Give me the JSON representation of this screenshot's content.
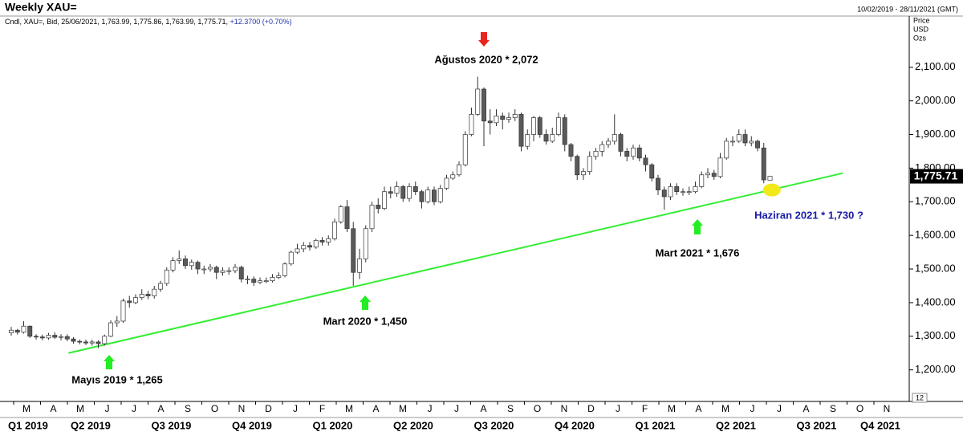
{
  "chart_data": {
    "type": "candlestick",
    "title": "Weekly XAU=",
    "date_range": "10/02/2019 - 28/11/2021 (GMT)",
    "info": "Cndl, XAU=, Bid, 25/06/2021, 1,763.99, 1,775.86, 1,763.99, 1,775.71,",
    "change": "+12.3700",
    "change_pct": "(+0.70%)",
    "units": [
      "Price",
      "USD",
      "Ozs"
    ],
    "corner_label": "12",
    "last_price_label": "1,775.71",
    "up_color": "#ffffff",
    "down_color": "#5a5a5a",
    "months": [
      "M",
      "A",
      "M",
      "J",
      "J",
      "A",
      "S",
      "O",
      "N",
      "D",
      "J",
      "F",
      "M",
      "A",
      "M",
      "J",
      "J",
      "A",
      "S",
      "O",
      "N",
      "D",
      "J",
      "F",
      "M",
      "A",
      "M",
      "J",
      "J",
      "A",
      "S",
      "O",
      "N"
    ],
    "quarters": [
      "Q1 2019",
      "Q2 2019",
      "Q3 2019",
      "Q4 2019",
      "Q1 2020",
      "Q2 2020",
      "Q3 2020",
      "Q4 2020",
      "Q1 2021",
      "Q2 2021",
      "Q3 2021",
      "Q4 2021"
    ],
    "ylim": [
      1130,
      2257
    ],
    "yticks": [
      {
        "value": 1200,
        "label": "1,200.00"
      },
      {
        "value": 1300,
        "label": "1,300.00"
      },
      {
        "value": 1400,
        "label": "1,400.00"
      },
      {
        "value": 1500,
        "label": "1,500.00"
      },
      {
        "value": 1600,
        "label": "1,600.00"
      },
      {
        "value": 1700,
        "label": "1,700.00"
      },
      {
        "value": 1800,
        "label": "1,800.00"
      },
      {
        "value": 1900,
        "label": "1,900.00"
      },
      {
        "value": 2000,
        "label": "2,000.00"
      },
      {
        "value": 2100,
        "label": "2,100.00"
      }
    ],
    "open": [
      1310,
      1318,
      1312,
      1330,
      1300,
      1298,
      1295,
      1303,
      1297,
      1299,
      1292,
      1285,
      1283,
      1280,
      1283,
      1278,
      1300,
      1340,
      1345,
      1405,
      1400,
      1415,
      1425,
      1420,
      1440,
      1457,
      1497,
      1525,
      1530,
      1510,
      1520,
      1500,
      1500,
      1505,
      1490,
      1495,
      1495,
      1505,
      1470,
      1470,
      1460,
      1465,
      1465,
      1475,
      1480,
      1515,
      1550,
      1560,
      1570,
      1565,
      1585,
      1580,
      1590,
      1640,
      1685,
      1620,
      1490,
      1530,
      1620,
      1690,
      1680,
      1730,
      1725,
      1745,
      1710,
      1745,
      1730,
      1700,
      1735,
      1700,
      1740,
      1770,
      1780,
      1810,
      1900,
      1960,
      2035,
      1940,
      1935,
      1955,
      1945,
      1950,
      1960,
      1865,
      1900,
      1950,
      1900,
      1880,
      1900,
      1950,
      1870,
      1835,
      1780,
      1790,
      1835,
      1850,
      1870,
      1880,
      1900,
      1850,
      1835,
      1860,
      1830,
      1810,
      1770,
      1735,
      1715,
      1745,
      1730,
      1730,
      1730,
      1745,
      1780,
      1785,
      1775,
      1830,
      1880,
      1880,
      1900,
      1875,
      1880,
      1860,
      1763.99
    ],
    "high": [
      1328,
      1322,
      1345,
      1332,
      1306,
      1305,
      1310,
      1312,
      1306,
      1306,
      1297,
      1290,
      1290,
      1290,
      1288,
      1305,
      1348,
      1360,
      1412,
      1420,
      1425,
      1440,
      1435,
      1450,
      1465,
      1505,
      1535,
      1555,
      1540,
      1528,
      1525,
      1510,
      1515,
      1510,
      1505,
      1505,
      1515,
      1510,
      1480,
      1478,
      1475,
      1475,
      1485,
      1490,
      1520,
      1555,
      1575,
      1580,
      1580,
      1590,
      1595,
      1600,
      1650,
      1690,
      1705,
      1640,
      1560,
      1630,
      1700,
      1710,
      1745,
      1745,
      1760,
      1750,
      1755,
      1760,
      1735,
      1745,
      1745,
      1750,
      1780,
      1790,
      1820,
      1910,
      1980,
      2072,
      2040,
      1975,
      1975,
      1965,
      1965,
      1975,
      1965,
      1915,
      1955,
      1955,
      1915,
      1920,
      1965,
      1960,
      1875,
      1840,
      1800,
      1850,
      1860,
      1880,
      1890,
      1960,
      1905,
      1860,
      1870,
      1870,
      1840,
      1815,
      1780,
      1745,
      1755,
      1755,
      1740,
      1745,
      1760,
      1790,
      1800,
      1795,
      1845,
      1890,
      1895,
      1915,
      1915,
      1895,
      1885,
      1875,
      1775.86
    ],
    "low": [
      1302,
      1305,
      1308,
      1295,
      1290,
      1288,
      1290,
      1292,
      1288,
      1285,
      1278,
      1276,
      1274,
      1272,
      1265,
      1272,
      1297,
      1328,
      1340,
      1385,
      1395,
      1408,
      1410,
      1412,
      1432,
      1450,
      1490,
      1515,
      1500,
      1498,
      1485,
      1485,
      1492,
      1470,
      1480,
      1483,
      1488,
      1460,
      1455,
      1450,
      1455,
      1458,
      1460,
      1470,
      1475,
      1510,
      1545,
      1550,
      1555,
      1560,
      1570,
      1570,
      1585,
      1635,
      1610,
      1450,
      1470,
      1520,
      1610,
      1665,
      1675,
      1710,
      1715,
      1700,
      1700,
      1720,
      1680,
      1695,
      1690,
      1695,
      1735,
      1765,
      1775,
      1805,
      1895,
      1955,
      1865,
      1900,
      1925,
      1915,
      1935,
      1940,
      1850,
      1855,
      1880,
      1890,
      1870,
      1875,
      1895,
      1850,
      1820,
      1765,
      1765,
      1780,
      1825,
      1835,
      1860,
      1870,
      1835,
      1820,
      1825,
      1820,
      1790,
      1760,
      1720,
      1676,
      1705,
      1720,
      1718,
      1720,
      1725,
      1740,
      1770,
      1765,
      1770,
      1825,
      1865,
      1875,
      1865,
      1865,
      1850,
      1755,
      1763.99
    ],
    "close": [
      1318,
      1312,
      1330,
      1300,
      1298,
      1295,
      1303,
      1297,
      1299,
      1292,
      1285,
      1283,
      1280,
      1283,
      1278,
      1300,
      1340,
      1345,
      1405,
      1400,
      1415,
      1425,
      1420,
      1440,
      1457,
      1497,
      1525,
      1530,
      1510,
      1520,
      1500,
      1500,
      1505,
      1490,
      1495,
      1495,
      1505,
      1470,
      1470,
      1460,
      1465,
      1465,
      1475,
      1480,
      1515,
      1550,
      1560,
      1570,
      1565,
      1585,
      1580,
      1590,
      1640,
      1685,
      1620,
      1490,
      1530,
      1620,
      1690,
      1680,
      1730,
      1725,
      1745,
      1710,
      1745,
      1730,
      1700,
      1735,
      1700,
      1740,
      1770,
      1780,
      1810,
      1900,
      1960,
      2035,
      1940,
      1935,
      1955,
      1945,
      1950,
      1960,
      1865,
      1900,
      1950,
      1900,
      1880,
      1900,
      1950,
      1870,
      1835,
      1780,
      1790,
      1835,
      1850,
      1870,
      1880,
      1900,
      1850,
      1835,
      1860,
      1830,
      1810,
      1770,
      1735,
      1715,
      1745,
      1730,
      1730,
      1730,
      1745,
      1780,
      1785,
      1775,
      1830,
      1880,
      1880,
      1900,
      1875,
      1880,
      1860,
      1765,
      1775.71
    ],
    "trendline": {
      "x": [
        9.2,
        133.7
      ],
      "y": [
        1250,
        1785
      ],
      "color": "#33ee33"
    },
    "highlight": {
      "x": 122.3,
      "y": 1735,
      "color": "#f2e81a"
    },
    "annotations": [
      {
        "text": "Ağustos 2020 * 2,072",
        "color": "#000000",
        "arrow_color": "#e8261e"
      },
      {
        "text": "Mayıs 2019 * 1,265",
        "color": "#000000",
        "arrow_color": "#22ee22"
      },
      {
        "text": "Mart 2020 * 1,450",
        "color": "#000000",
        "arrow_color": "#22ee22"
      },
      {
        "text": "Mart 2021 * 1,676",
        "color": "#000000",
        "arrow_color": "#22ee22"
      },
      {
        "text": "Haziran 2021 * 1,730 ?",
        "color": "#1a1aa8"
      }
    ]
  }
}
